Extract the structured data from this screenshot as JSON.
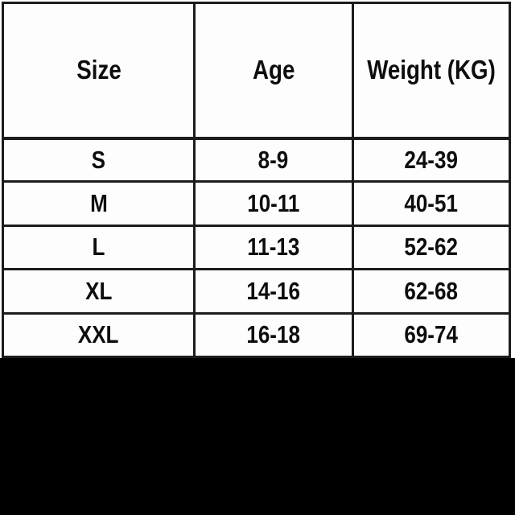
{
  "chart_data": {
    "type": "table",
    "columns": [
      "Size",
      "Age",
      "Weight (KG)"
    ],
    "rows": [
      [
        "S",
        "8-9",
        "24-39"
      ],
      [
        "M",
        "10-11",
        "40-51"
      ],
      [
        "L",
        "11-13",
        "52-62"
      ],
      [
        "XL",
        "14-16",
        "62-68"
      ],
      [
        "XXL",
        "16-18",
        "69-74"
      ]
    ],
    "layout": {
      "grid": "on",
      "header_position": "top",
      "column_widths_pct": [
        37.8,
        31.2,
        31.0
      ]
    }
  },
  "colors": {
    "border": "#1c1c1c",
    "text": "#0d0d0d",
    "cell_background": "#fdfdfd",
    "footer_band": "#000000"
  }
}
